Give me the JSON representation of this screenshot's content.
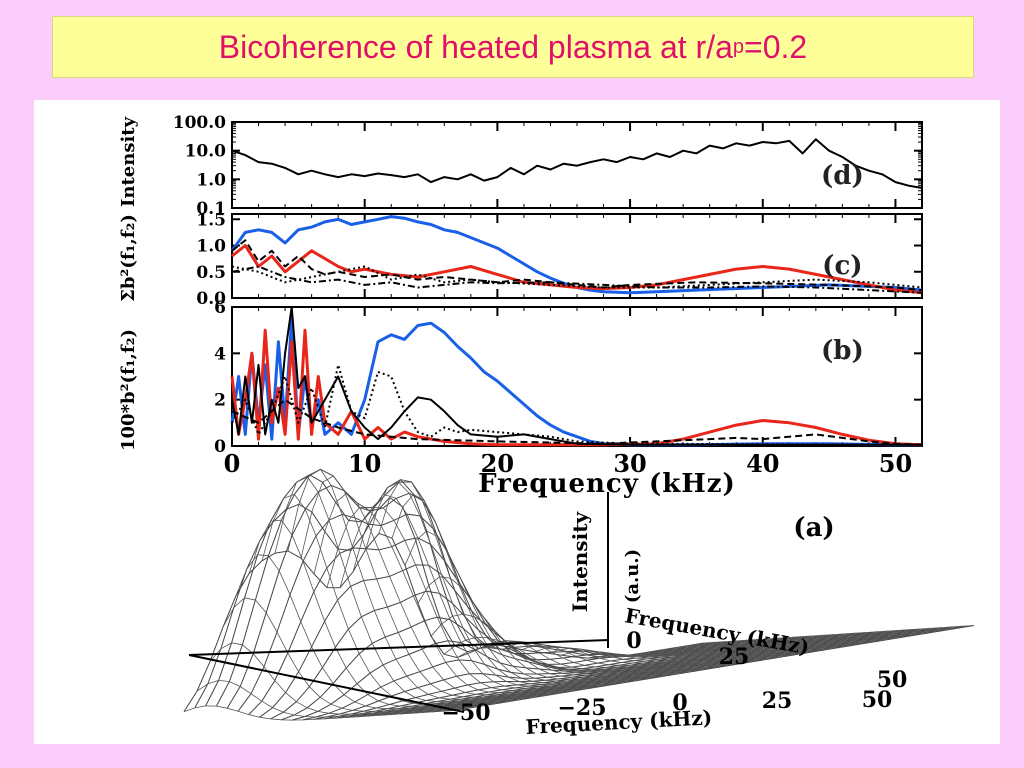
{
  "slide": {
    "title_main": "Bicoherence of heated plasma at r/a",
    "title_sub": "p",
    "title_tail": " =0.2"
  },
  "colors": {
    "background": "#fbcdfb",
    "title_box": "#ffff99",
    "title_text": "#e0106a",
    "series_blue": "#1a5fe8",
    "series_red": "#e8261a",
    "series_black": "#000000"
  },
  "chart_data": [
    {
      "panel": "(d)",
      "type": "line",
      "ylabel": "Intensity",
      "yscale": "log",
      "ylim": [
        0.1,
        100
      ],
      "yticks": [
        "100.0",
        "10.0",
        "1.0",
        "0.1"
      ],
      "xlim": [
        0,
        52
      ],
      "series": [
        {
          "color": "black",
          "x": [
            0,
            1,
            2,
            3,
            4,
            5,
            6,
            7,
            8,
            9,
            10,
            11,
            12,
            13,
            14,
            15,
            16,
            17,
            18,
            19,
            20,
            21,
            22,
            23,
            24,
            25,
            26,
            27,
            28,
            29,
            30,
            31,
            32,
            33,
            34,
            35,
            36,
            37,
            38,
            39,
            40,
            41,
            42,
            43,
            44,
            45,
            46,
            47,
            48,
            49,
            50,
            51,
            52
          ],
          "y": [
            10,
            7,
            4,
            3.5,
            2.5,
            1.5,
            2,
            1.5,
            1.2,
            1.5,
            1.3,
            1.6,
            1.4,
            1.2,
            1.5,
            0.8,
            1.2,
            1.0,
            1.5,
            0.9,
            1.2,
            2.5,
            1.5,
            3,
            2.2,
            3.5,
            3,
            4,
            5,
            4,
            6,
            5,
            8,
            6,
            10,
            8,
            15,
            12,
            18,
            15,
            20,
            18,
            22,
            8,
            25,
            10,
            6,
            3,
            2,
            1.5,
            0.8,
            0.6,
            0.5
          ]
        }
      ]
    },
    {
      "panel": "(c)",
      "type": "line",
      "ylabel": "Σb²(f₁,f₂)",
      "ylim": [
        0,
        1.6
      ],
      "yticks": [
        "1.5",
        "1.0",
        "0.5",
        "0.0"
      ],
      "xlim": [
        0,
        52
      ],
      "series": [
        {
          "color": "blue",
          "style": "solid",
          "x": [
            0,
            1,
            2,
            3,
            4,
            5,
            6,
            7,
            8,
            9,
            10,
            11,
            12,
            13,
            14,
            15,
            16,
            17,
            18,
            19,
            20,
            21,
            22,
            23,
            24,
            25,
            26,
            27,
            28,
            30,
            35,
            40,
            45,
            50,
            52
          ],
          "y": [
            0.9,
            1.25,
            1.3,
            1.25,
            1.05,
            1.3,
            1.35,
            1.45,
            1.5,
            1.4,
            1.45,
            1.5,
            1.55,
            1.52,
            1.45,
            1.4,
            1.3,
            1.25,
            1.15,
            1.05,
            0.95,
            0.8,
            0.65,
            0.5,
            0.38,
            0.28,
            0.2,
            0.15,
            0.12,
            0.1,
            0.15,
            0.2,
            0.25,
            0.2,
            0.15
          ]
        },
        {
          "color": "red",
          "style": "solid",
          "x": [
            0,
            1,
            2,
            3,
            4,
            5,
            6,
            7,
            8,
            9,
            10,
            12,
            14,
            16,
            18,
            20,
            22,
            24,
            26,
            28,
            30,
            32,
            34,
            36,
            38,
            40,
            42,
            44,
            46,
            48,
            50,
            52
          ],
          "y": [
            0.8,
            1.0,
            0.6,
            0.8,
            0.5,
            0.7,
            0.9,
            0.75,
            0.6,
            0.5,
            0.55,
            0.45,
            0.4,
            0.5,
            0.6,
            0.45,
            0.3,
            0.25,
            0.2,
            0.18,
            0.2,
            0.25,
            0.35,
            0.45,
            0.55,
            0.6,
            0.55,
            0.45,
            0.35,
            0.25,
            0.15,
            0.1
          ]
        },
        {
          "color": "black",
          "style": "dashed",
          "x": [
            0,
            1,
            2,
            3,
            4,
            5,
            6,
            7,
            8,
            10,
            12,
            14,
            16,
            18,
            20,
            22,
            24,
            26,
            28,
            30,
            35,
            40,
            45,
            50,
            52
          ],
          "y": [
            0.9,
            1.1,
            0.7,
            0.9,
            0.6,
            0.8,
            0.55,
            0.45,
            0.5,
            0.4,
            0.45,
            0.35,
            0.4,
            0.35,
            0.3,
            0.35,
            0.3,
            0.25,
            0.2,
            0.25,
            0.3,
            0.28,
            0.25,
            0.2,
            0.15
          ]
        },
        {
          "color": "black",
          "style": "dotted",
          "x": [
            0,
            2,
            4,
            6,
            8,
            10,
            12,
            14,
            16,
            18,
            20,
            24,
            28,
            32,
            36,
            40,
            44,
            48,
            52
          ],
          "y": [
            0.6,
            0.5,
            0.3,
            0.4,
            0.5,
            0.6,
            0.35,
            0.45,
            0.3,
            0.35,
            0.3,
            0.25,
            0.2,
            0.2,
            0.25,
            0.3,
            0.35,
            0.3,
            0.2
          ]
        },
        {
          "color": "black",
          "style": "dash-dot",
          "x": [
            0,
            2,
            4,
            6,
            8,
            10,
            12,
            14,
            16,
            18,
            20,
            24,
            28,
            32,
            36,
            40,
            44,
            48,
            52
          ],
          "y": [
            0.5,
            0.6,
            0.4,
            0.3,
            0.35,
            0.25,
            0.3,
            0.2,
            0.25,
            0.3,
            0.28,
            0.3,
            0.25,
            0.2,
            0.2,
            0.22,
            0.2,
            0.15,
            0.1
          ]
        }
      ]
    },
    {
      "panel": "(b)",
      "type": "line",
      "ylabel": "100*b²(f₁,f₂)",
      "ylim": [
        0,
        6
      ],
      "yticks": [
        "6",
        "4",
        "2",
        "0"
      ],
      "xlim": [
        0,
        52
      ],
      "xticks": [
        "0",
        "10",
        "20",
        "30",
        "40",
        "50"
      ],
      "xlabel": "Frequency (kHz)",
      "series": [
        {
          "color": "blue",
          "style": "solid",
          "x": [
            0,
            0.5,
            1,
            1.5,
            2,
            2.5,
            3,
            3.5,
            4,
            4.5,
            5,
            5.5,
            6,
            6.5,
            7,
            8,
            9,
            10,
            11,
            12,
            13,
            14,
            15,
            16,
            17,
            18,
            19,
            20,
            21,
            22,
            23,
            24,
            25,
            26,
            27,
            28,
            30,
            35,
            40,
            45,
            50,
            52
          ],
          "y": [
            1,
            3,
            0.5,
            4,
            1,
            3.5,
            0.3,
            4.5,
            1,
            5.5,
            0.5,
            3,
            0.8,
            2,
            0.5,
            1,
            0.5,
            2,
            4.5,
            4.8,
            4.6,
            5.2,
            5.3,
            4.9,
            4.3,
            3.8,
            3.2,
            2.8,
            2.3,
            1.8,
            1.3,
            0.9,
            0.6,
            0.4,
            0.2,
            0.1,
            0.05,
            0.05,
            0.1,
            0.1,
            0.05,
            0.05
          ]
        },
        {
          "color": "red",
          "style": "solid",
          "x": [
            0,
            0.5,
            1,
            1.5,
            2,
            2.5,
            3,
            3.5,
            4,
            4.5,
            5,
            5.5,
            6,
            6.5,
            7,
            8,
            9,
            10,
            11,
            12,
            13,
            14,
            16,
            18,
            20,
            24,
            28,
            32,
            34,
            36,
            38,
            40,
            42,
            44,
            46,
            48,
            50,
            52
          ],
          "y": [
            3,
            0.5,
            2,
            4,
            0.3,
            5,
            1,
            2.5,
            0.5,
            4.5,
            0.3,
            5,
            0.5,
            3,
            1,
            0.5,
            1.5,
            0.3,
            0.8,
            0.3,
            0.6,
            0.4,
            0.2,
            0.1,
            0.05,
            0.05,
            0.05,
            0.1,
            0.3,
            0.6,
            0.9,
            1.1,
            1.0,
            0.8,
            0.5,
            0.25,
            0.1,
            0.05
          ]
        },
        {
          "color": "black",
          "style": "solid",
          "x": [
            0,
            0.5,
            1,
            1.5,
            2,
            2.5,
            3,
            3.5,
            4,
            4.5,
            5,
            5.5,
            6,
            7,
            8,
            9,
            10,
            11,
            12,
            13,
            14,
            15,
            16,
            17,
            18,
            20,
            22,
            24,
            26,
            30,
            52
          ],
          "y": [
            2,
            0.5,
            3,
            1,
            3.5,
            0.5,
            2,
            1,
            4,
            6,
            2.5,
            3,
            1,
            2,
            3,
            1.5,
            0.8,
            0.3,
            0.8,
            1.5,
            2.1,
            2.0,
            1.5,
            0.9,
            0.5,
            0.4,
            0.5,
            0.3,
            0.1,
            0.05,
            0.05
          ]
        },
        {
          "color": "black",
          "style": "dotted",
          "x": [
            0,
            1,
            2,
            3,
            4,
            5,
            6,
            7,
            8,
            9,
            10,
            11,
            12,
            13,
            14,
            15,
            16,
            17,
            18,
            20,
            22,
            24,
            26,
            30,
            52
          ],
          "y": [
            1,
            2,
            0.5,
            1.5,
            3,
            1,
            2.5,
            0.8,
            3.5,
            1.5,
            1.2,
            3.2,
            3.0,
            1.5,
            0.6,
            0.4,
            0.8,
            0.6,
            0.7,
            0.6,
            0.5,
            0.4,
            0.2,
            0.1,
            0.05
          ]
        },
        {
          "color": "black",
          "style": "dashed",
          "x": [
            0,
            2,
            4,
            6,
            8,
            10,
            14,
            20,
            28,
            30,
            32,
            34,
            36,
            38,
            40,
            42,
            44,
            46,
            48,
            50,
            52
          ],
          "y": [
            1.5,
            1,
            2,
            1.2,
            0.8,
            0.5,
            0.3,
            0.2,
            0.1,
            0.15,
            0.2,
            0.25,
            0.3,
            0.35,
            0.3,
            0.4,
            0.5,
            0.35,
            0.2,
            0.1,
            0.05
          ]
        }
      ]
    },
    {
      "panel": "(a)",
      "type": "surface",
      "zlabel": "Intensity (a.u.)",
      "axis1_label": "Frequency (kHz)",
      "axis1_ticks": [
        "0",
        "25",
        "50"
      ],
      "axis2_label": "Frequency (kHz)",
      "axis2_ticks": [
        "−50",
        "−25",
        "0",
        "25",
        "50"
      ]
    }
  ]
}
